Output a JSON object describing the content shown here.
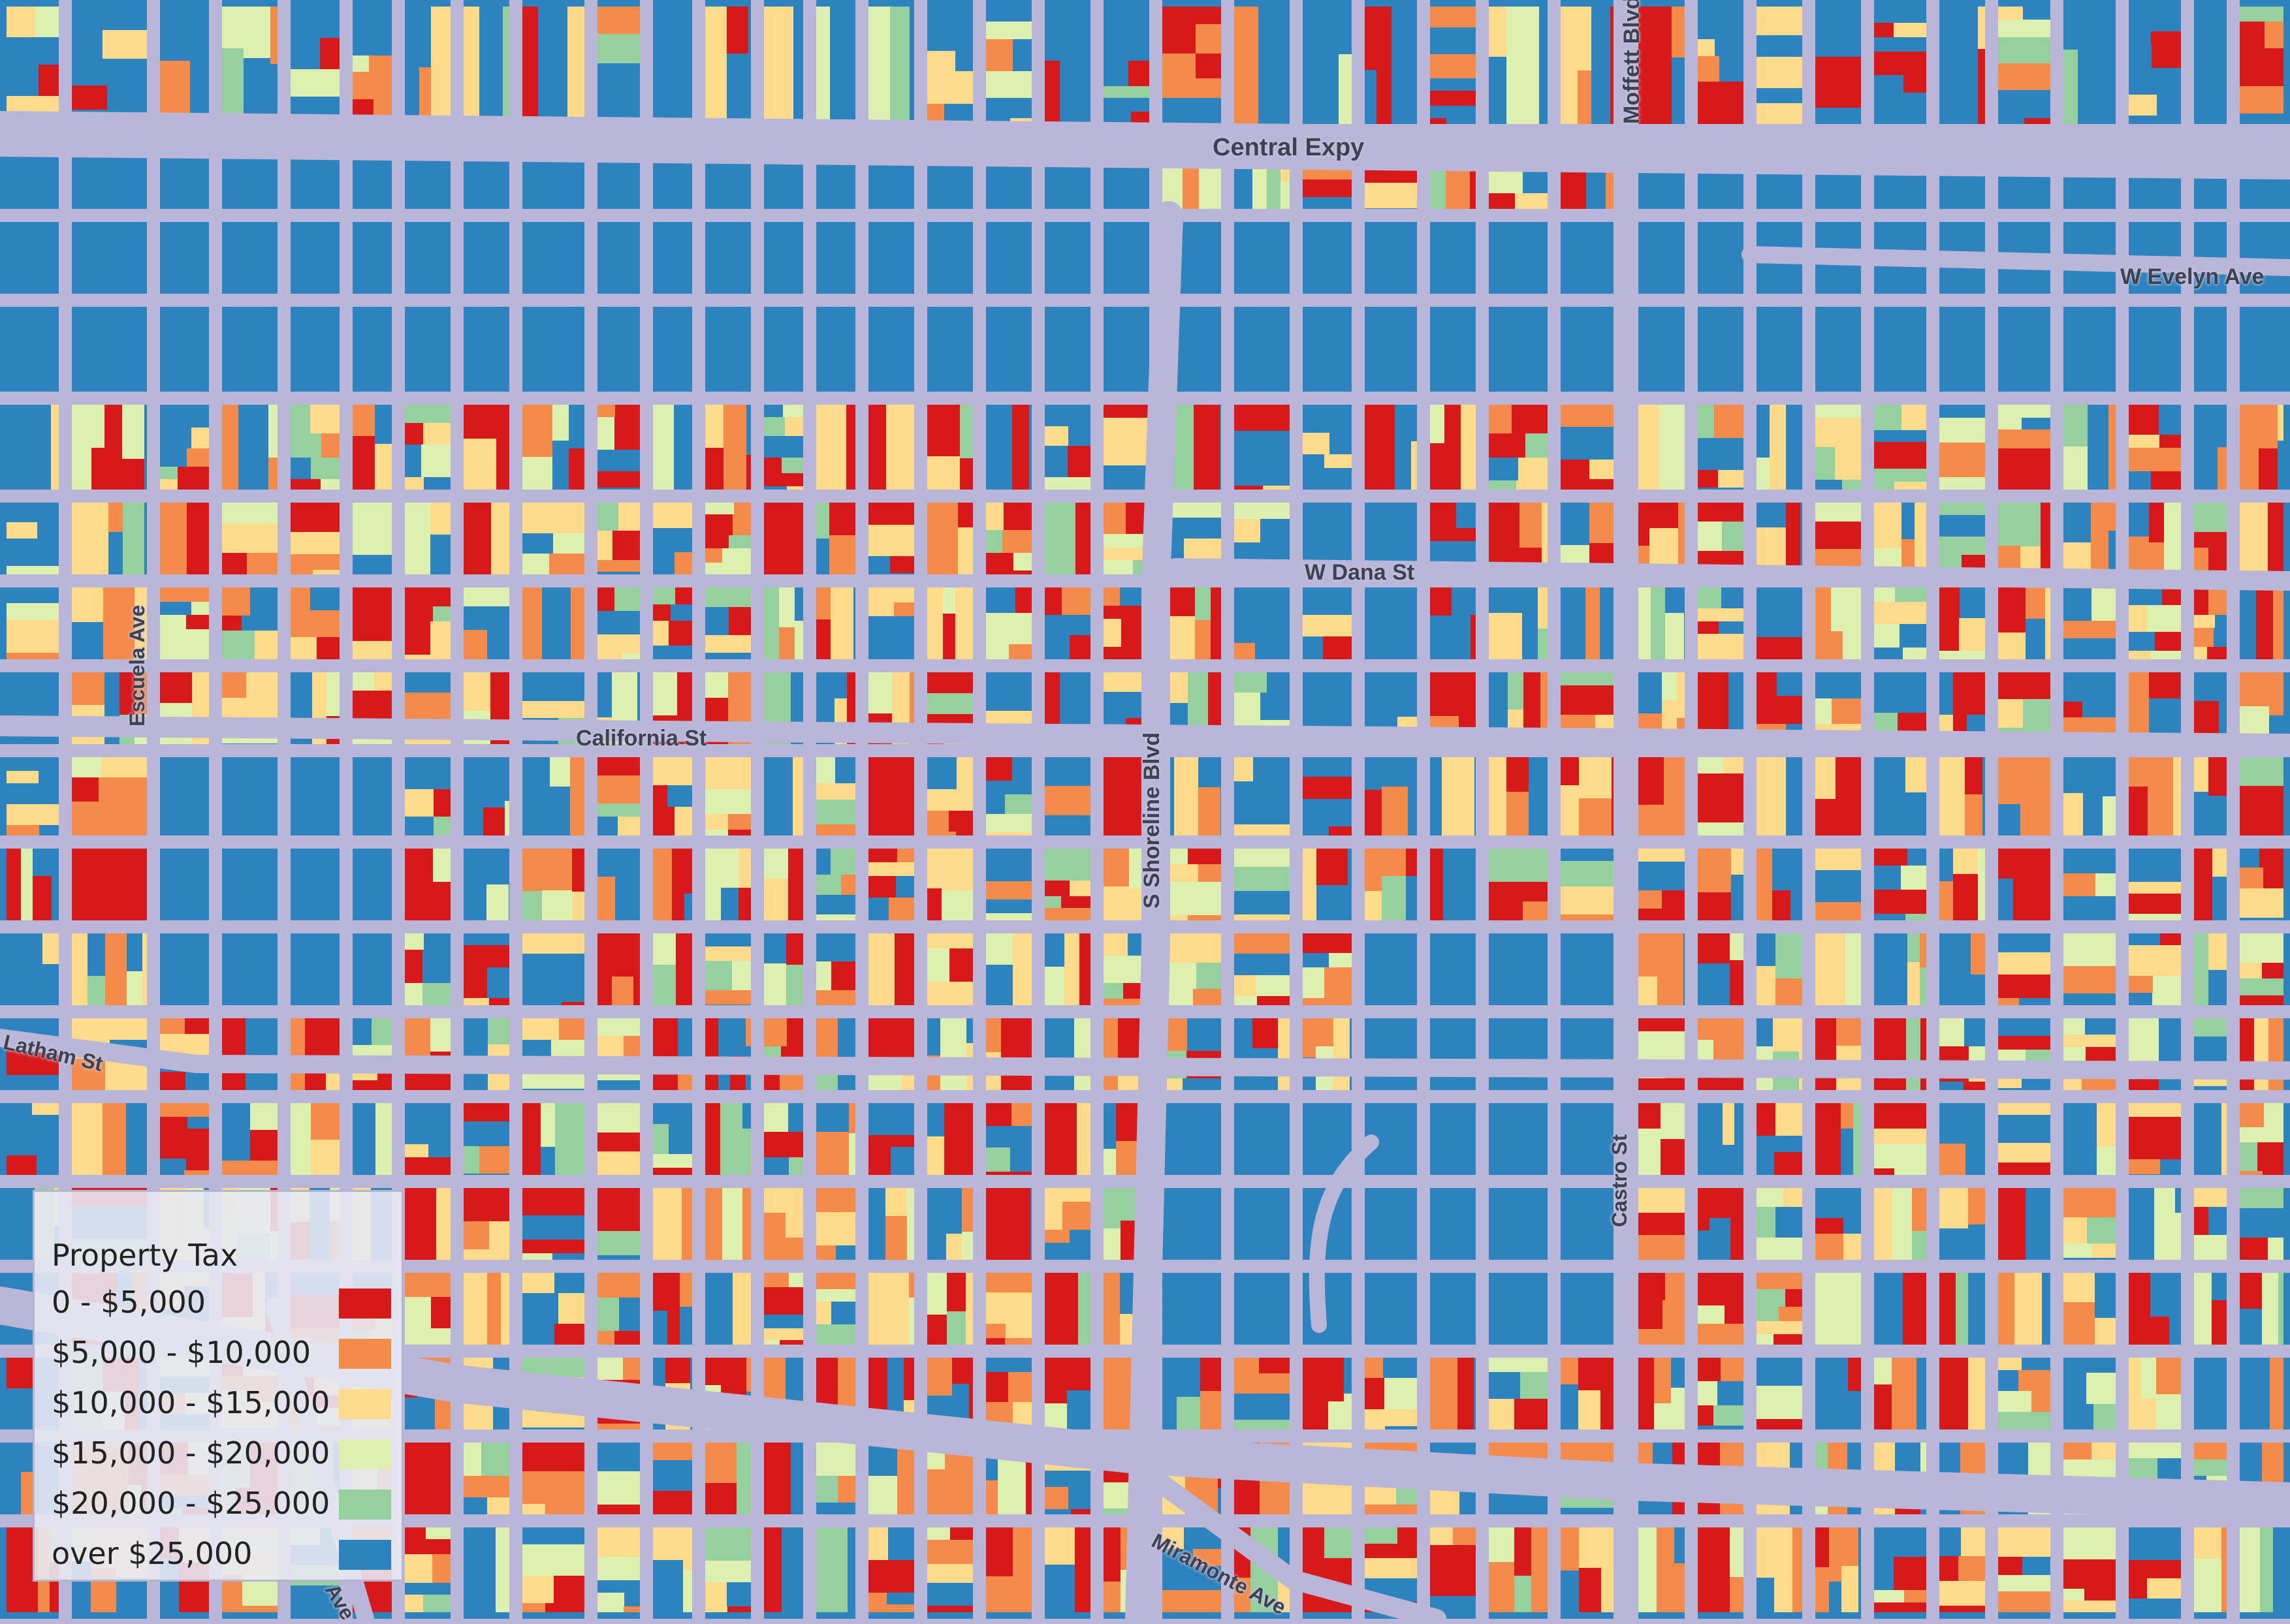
{
  "legend": {
    "title": "Property Tax",
    "items": [
      {
        "label": "0 - $5,000",
        "color": "#d7191c"
      },
      {
        "label": "$5,000 - $10,000",
        "color": "#f58b4a"
      },
      {
        "label": "$10,000 - $15,000",
        "color": "#fedb8b"
      },
      {
        "label": "$15,000 - $20,000",
        "color": "#ddf0b0"
      },
      {
        "label": "$20,000 - $25,000",
        "color": "#96d09e"
      },
      {
        "label": "over $25,000",
        "color": "#2d83bd"
      }
    ]
  },
  "streets": {
    "central_expy": "Central Expy",
    "moffett_blvd": "Moffett Blvd",
    "w_evelyn_ave": "W Evelyn Ave",
    "w_dana_st": "W Dana St",
    "escuela_ave": "Escuela Ave",
    "california_st": "California St",
    "s_shoreline_blvd": "S Shoreline Blvd",
    "latham_st": "Latham St",
    "castro_st": "Castro St",
    "miramonte_ave": "Miramonte Ave",
    "partial_ave": "Ave"
  },
  "colors": {
    "road": "#b9b6d8",
    "background_parcel": "#2d83bd",
    "label_text": "#3d4250"
  }
}
